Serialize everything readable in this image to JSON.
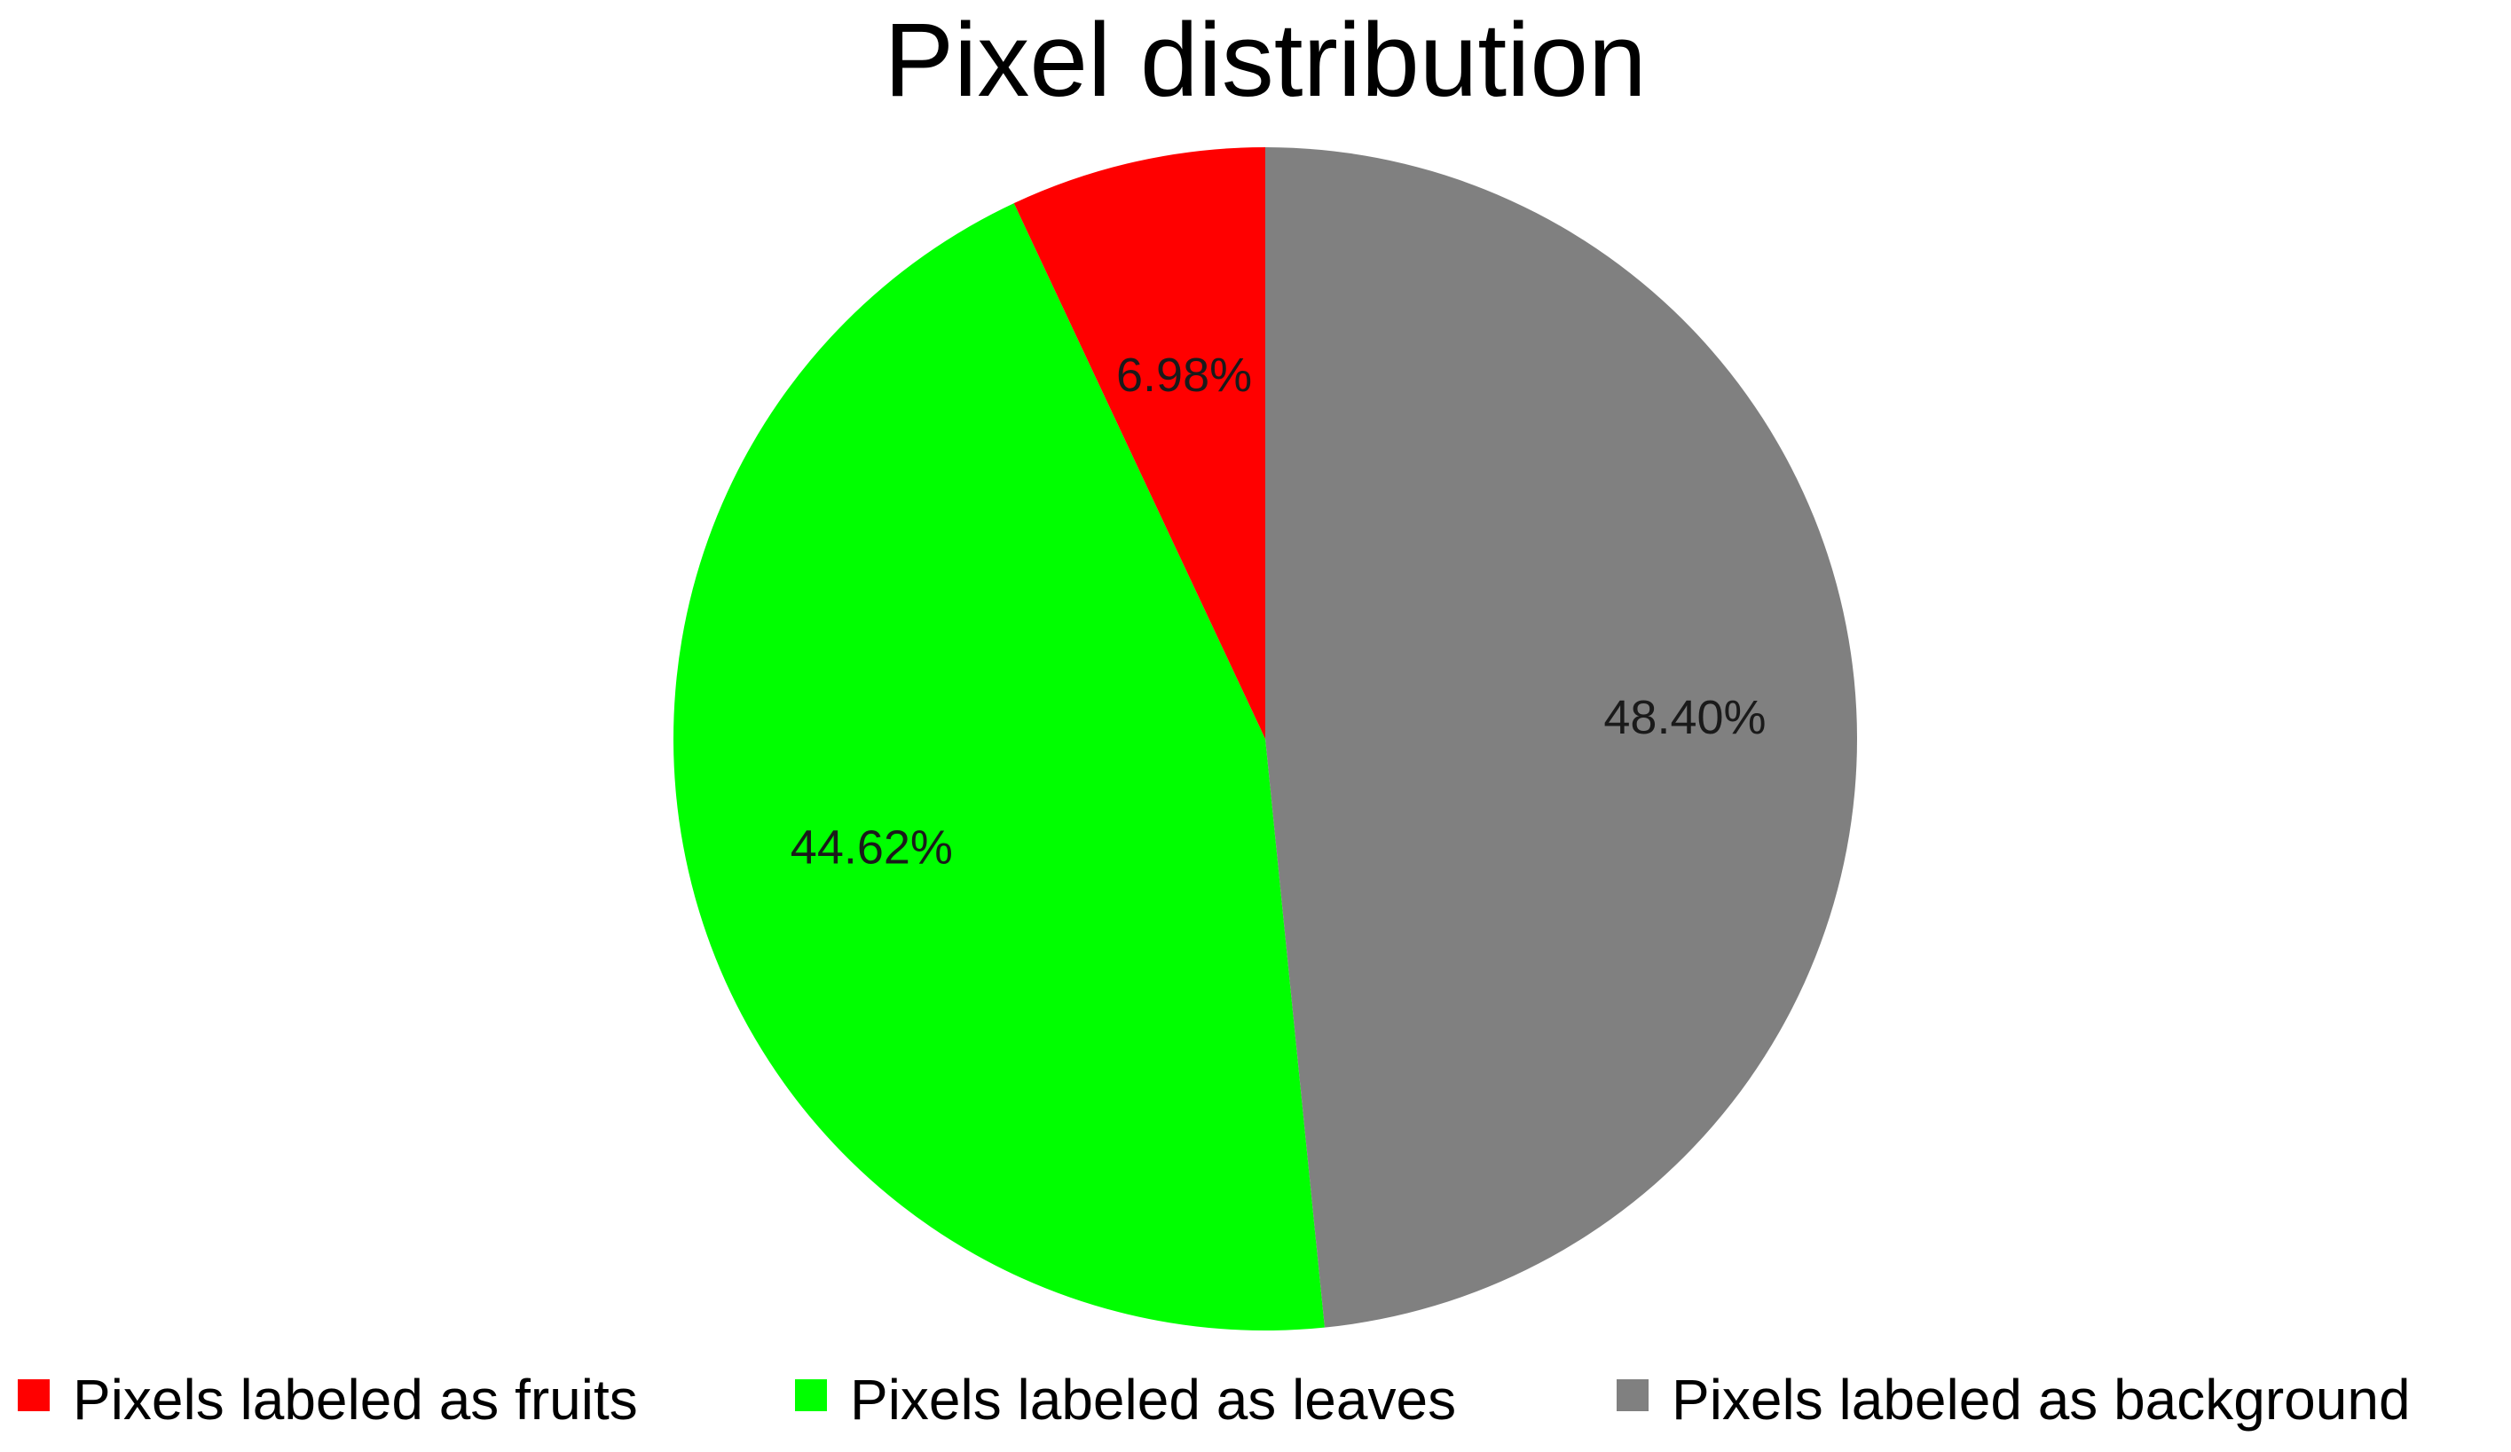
{
  "chart_data": {
    "type": "pie",
    "title": "Pixel distribution",
    "start_angle_deg": 0,
    "direction": "clockwise",
    "legend_position": "bottom",
    "slices": [
      {
        "name": "Pixels labeled as background",
        "value": 48.4,
        "label": "48.40%",
        "color": "#808080"
      },
      {
        "name": "Pixels labeled as leaves",
        "value": 44.62,
        "label": "44.62%",
        "color": "#00ff00"
      },
      {
        "name": "Pixels labeled as fruits",
        "value": 6.98,
        "label": "6.98%",
        "color": "#ff0000"
      }
    ],
    "legend": [
      {
        "name": "Pixels labeled as fruits",
        "color": "#ff0000"
      },
      {
        "name": "Pixels labeled as leaves",
        "color": "#00ff00"
      },
      {
        "name": "Pixels labeled as background",
        "color": "#808080"
      }
    ]
  }
}
